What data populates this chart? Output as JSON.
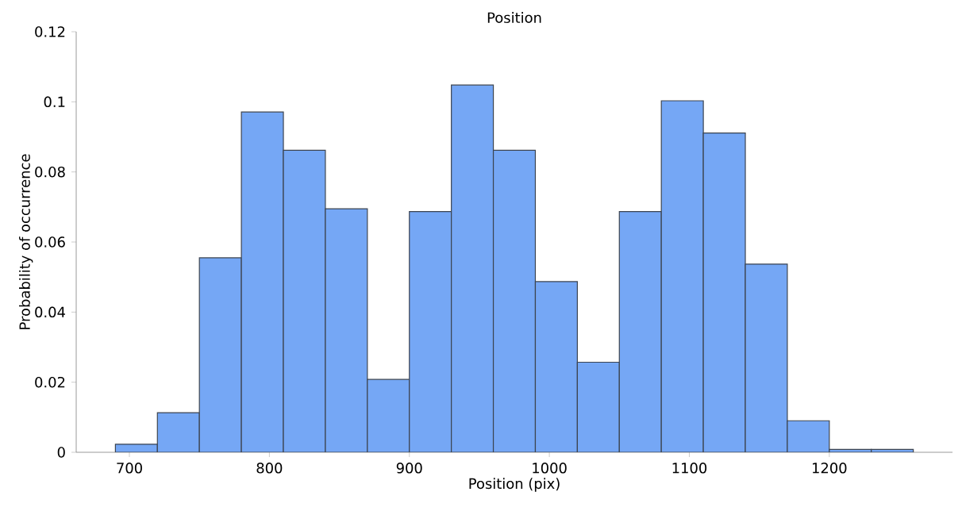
{
  "chart_data": {
    "type": "histogram",
    "title": "Position",
    "xlabel": "Position (pix)",
    "ylabel": "Probability of occurrence",
    "bins": [
      690,
      720,
      750,
      780,
      810,
      840,
      870,
      900,
      930,
      960,
      990,
      1020,
      1050,
      1080,
      1110,
      1140,
      1170,
      1200,
      1230,
      1260
    ],
    "values": [
      0.0023,
      0.0113,
      0.0555,
      0.0971,
      0.0862,
      0.0695,
      0.0208,
      0.0687,
      0.1048,
      0.0862,
      0.0487,
      0.0257,
      0.0687,
      0.1003,
      0.0911,
      0.0537,
      0.009,
      0.0008,
      0.0008
    ],
    "color": "#75a7f5",
    "xlim": [
      662,
      1288
    ],
    "ylim": [
      0,
      0.12
    ],
    "xticks": [
      700,
      800,
      900,
      1000,
      1100,
      1200
    ],
    "yticks": [
      0,
      0.02,
      0.04,
      0.06,
      0.08,
      0.1,
      0.12
    ],
    "grid": false
  }
}
